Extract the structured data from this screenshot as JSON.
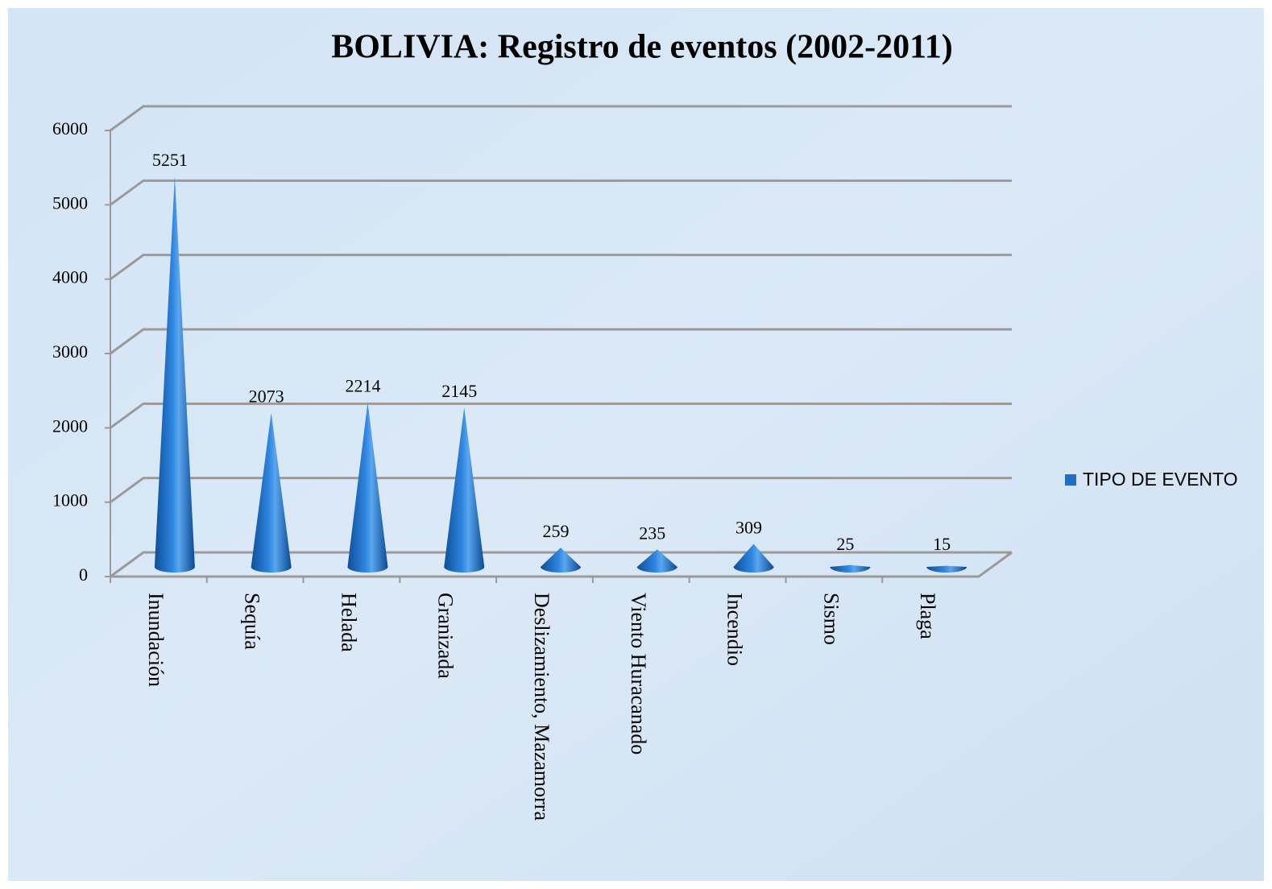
{
  "chart_data": {
    "type": "cone",
    "title": "BOLIVIA: Registro de eventos (2002-2011)",
    "categories": [
      "Inundación",
      "Sequía",
      "Helada",
      "Granizada",
      "Deslizamiento, Mazamorra",
      "Viento Huracanado",
      "Incendio",
      "Sismo",
      "Plaga"
    ],
    "series": [
      {
        "name": "TIPO DE EVENTO",
        "color": "#1f6fc5",
        "values": [
          5251,
          2073,
          2214,
          2145,
          259,
          235,
          309,
          25,
          15
        ]
      }
    ],
    "ylim": [
      0,
      6000
    ],
    "yticks": [
      0,
      1000,
      2000,
      3000,
      4000,
      5000,
      6000
    ],
    "grid": true,
    "legend": "right"
  }
}
